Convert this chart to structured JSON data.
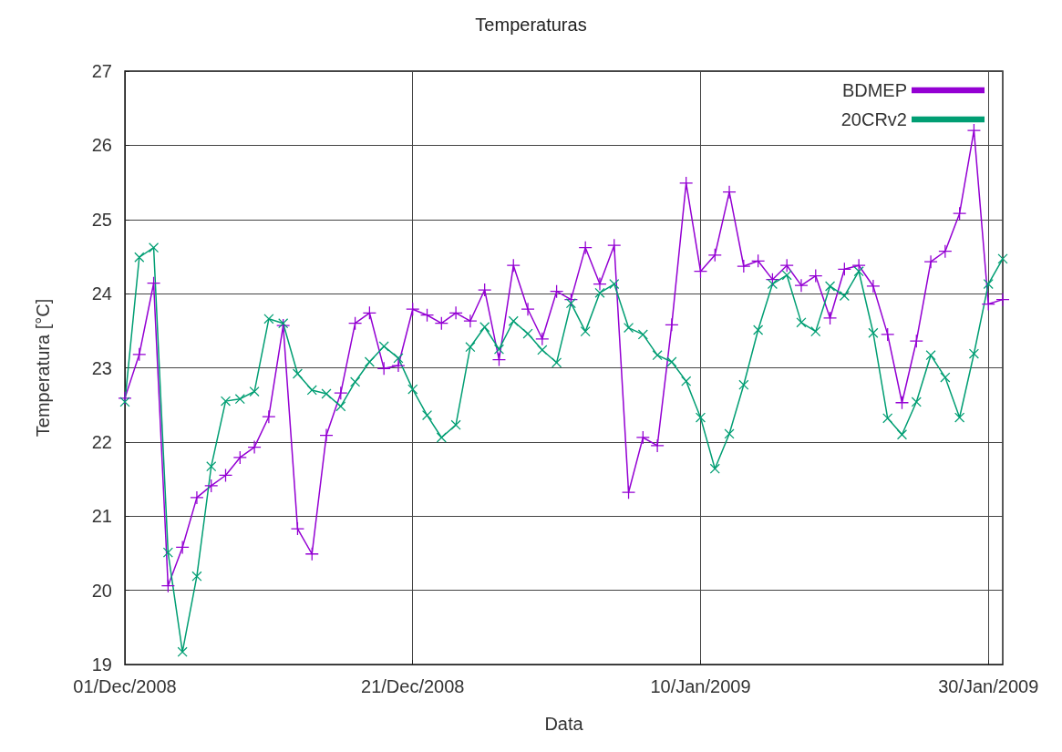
{
  "chart_data": {
    "type": "line",
    "title": "Temperaturas",
    "xlabel": "Data",
    "ylabel": "Temperatura [°C]",
    "x": [
      "2008-12-01",
      "2008-12-02",
      "2008-12-03",
      "2008-12-04",
      "2008-12-05",
      "2008-12-06",
      "2008-12-07",
      "2008-12-08",
      "2008-12-09",
      "2008-12-10",
      "2008-12-11",
      "2008-12-12",
      "2008-12-13",
      "2008-12-14",
      "2008-12-15",
      "2008-12-16",
      "2008-12-17",
      "2008-12-18",
      "2008-12-19",
      "2008-12-20",
      "2008-12-21",
      "2008-12-22",
      "2008-12-23",
      "2008-12-24",
      "2008-12-25",
      "2008-12-26",
      "2008-12-27",
      "2008-12-28",
      "2008-12-29",
      "2008-12-30",
      "2008-12-31",
      "2009-01-01",
      "2009-01-02",
      "2009-01-03",
      "2009-01-04",
      "2009-01-05",
      "2009-01-06",
      "2009-01-07",
      "2009-01-08",
      "2009-01-09",
      "2009-01-10",
      "2009-01-11",
      "2009-01-12",
      "2009-01-13",
      "2009-01-14",
      "2009-01-15",
      "2009-01-16",
      "2009-01-17",
      "2009-01-18",
      "2009-01-19",
      "2009-01-20",
      "2009-01-21",
      "2009-01-22",
      "2009-01-23",
      "2009-01-24",
      "2009-01-25",
      "2009-01-26",
      "2009-01-27",
      "2009-01-28",
      "2009-01-29",
      "2009-01-30",
      "2009-01-31"
    ],
    "series": [
      {
        "name": "BDMEP",
        "color": "#9400d3",
        "marker": "cross",
        "values": [
          22.59,
          23.18,
          24.14,
          20.06,
          20.58,
          21.25,
          21.41,
          21.55,
          21.79,
          21.93,
          22.34,
          23.57,
          20.83,
          20.49,
          22.09,
          22.66,
          23.6,
          23.74,
          22.99,
          23.03,
          23.79,
          23.71,
          23.6,
          23.74,
          23.63,
          24.05,
          23.11,
          24.38,
          23.79,
          23.39,
          24.03,
          23.92,
          24.62,
          24.13,
          24.65,
          21.32,
          22.06,
          21.95,
          23.58,
          25.49,
          24.3,
          24.52,
          25.37,
          24.37,
          24.44,
          24.19,
          24.38,
          24.11,
          24.24,
          23.67,
          24.33,
          24.38,
          24.1,
          23.45,
          22.53,
          23.36,
          24.43,
          24.57,
          25.08,
          26.2,
          23.86,
          23.92
        ]
      },
      {
        "name": "20CRv2",
        "color": "#009e73",
        "marker": "x",
        "values": [
          22.54,
          24.49,
          24.62,
          20.51,
          19.17,
          20.19,
          21.67,
          22.55,
          22.58,
          22.68,
          23.66,
          23.6,
          22.92,
          22.7,
          22.65,
          22.48,
          22.81,
          23.08,
          23.29,
          23.13,
          22.71,
          22.36,
          22.06,
          22.23,
          23.28,
          23.55,
          23.25,
          23.63,
          23.46,
          23.24,
          23.07,
          23.87,
          23.49,
          24.01,
          24.13,
          23.54,
          23.45,
          23.17,
          23.08,
          22.82,
          22.33,
          21.64,
          22.11,
          22.77,
          23.51,
          24.13,
          24.25,
          23.61,
          23.49,
          24.1,
          23.97,
          24.3,
          23.47,
          22.32,
          22.1,
          22.54,
          23.17,
          22.87,
          22.33,
          23.19,
          24.13,
          24.47
        ]
      }
    ],
    "xlim": [
      "2008-12-01",
      "2009-01-31"
    ],
    "xticks": [
      {
        "value": "2008-12-01",
        "label": "01/Dec/2008"
      },
      {
        "value": "2008-12-21",
        "label": "21/Dec/2008"
      },
      {
        "value": "2009-01-10",
        "label": "10/Jan/2009"
      },
      {
        "value": "2009-01-30",
        "label": "30/Jan/2009"
      }
    ],
    "ylim": [
      19,
      27
    ],
    "yticks": [
      19,
      20,
      21,
      22,
      23,
      24,
      25,
      26,
      27
    ],
    "grid": true,
    "legend": "top right"
  }
}
